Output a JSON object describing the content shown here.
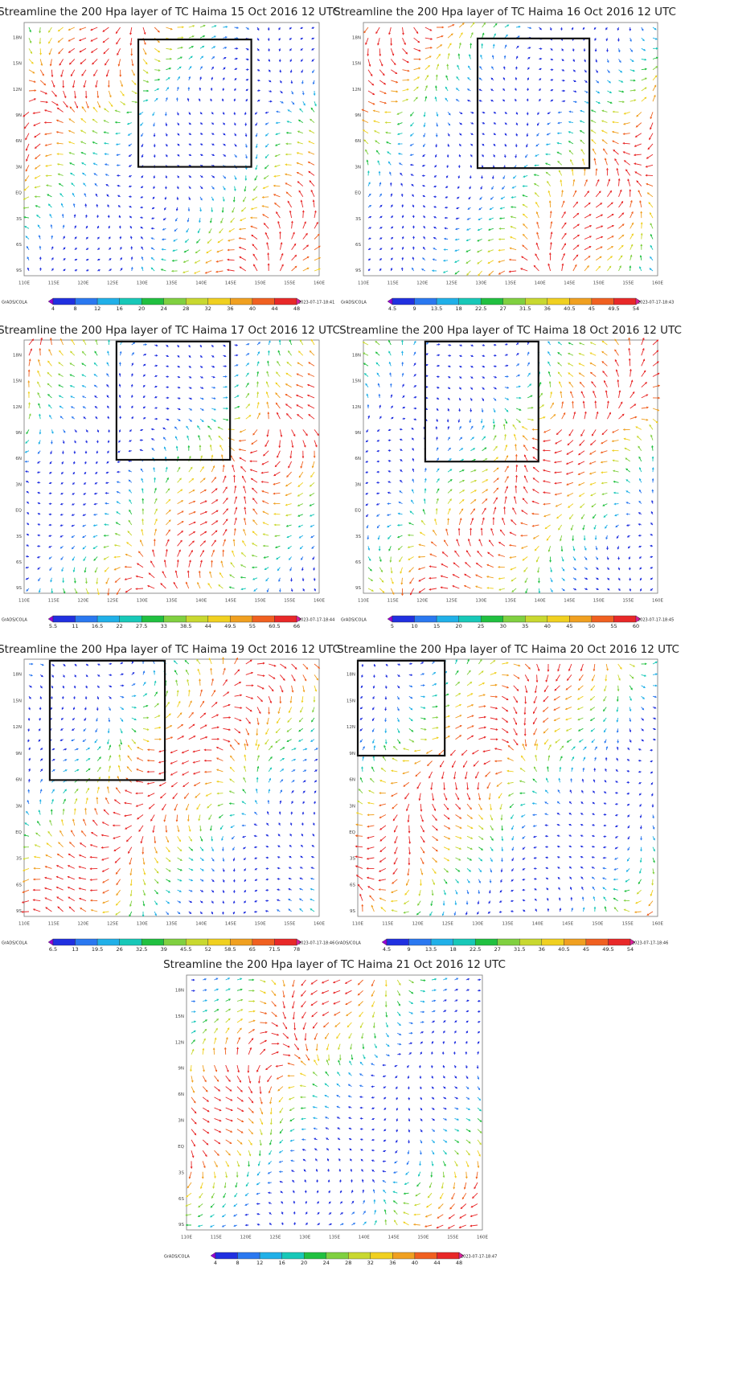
{
  "panels": [
    {
      "title": "Streamline the 200 Hpa layer of TC Haima 15 Oct 2016 12 UTC",
      "colorbar_labels": [
        "4",
        "8",
        "12",
        "16",
        "20",
        "24",
        "28",
        "32",
        "36",
        "40",
        "44",
        "48"
      ],
      "credit": "GrADS/COLA",
      "timestamp": "2023-07-17-18:41"
    },
    {
      "title": "Streamline the 200 Hpa layer of TC Haima 16 Oct 2016 12 UTC",
      "colorbar_labels": [
        "4.5",
        "9",
        "13.5",
        "18",
        "22.5",
        "27",
        "31.5",
        "36",
        "40.5",
        "45",
        "49.5",
        "54"
      ],
      "credit": "GrADS/COLA",
      "timestamp": "2023-07-17-18:43"
    },
    {
      "title": "Streamline the 200 Hpa layer of TC Haima 17 Oct 2016 12 UTC",
      "colorbar_labels": [
        "5.5",
        "11",
        "16.5",
        "22",
        "27.5",
        "33",
        "38.5",
        "44",
        "49.5",
        "55",
        "60.5",
        "66"
      ],
      "credit": "GrADS/COLA",
      "timestamp": "2023-07-17-18:44"
    },
    {
      "title": "Streamline the 200 Hpa layer of TC Haima 18 Oct 2016 12 UTC",
      "colorbar_labels": [
        "5",
        "10",
        "15",
        "20",
        "25",
        "30",
        "35",
        "40",
        "45",
        "50",
        "55",
        "60"
      ],
      "credit": "GrADS/COLA",
      "timestamp": "2023-07-17-18:45"
    },
    {
      "title": "Streamline the 200 Hpa layer of TC Haima 19 Oct 2016 12 UTC",
      "colorbar_labels": [
        "6.5",
        "13",
        "19.5",
        "26",
        "32.5",
        "39",
        "45.5",
        "52",
        "58.5",
        "65",
        "71.5",
        "78"
      ],
      "credit": "GrADS/COLA",
      "timestamp": "2023-07-17-18:46"
    },
    {
      "title": "Streamline the 200 Hpa layer of TC Haima 20 Oct 2016 12 UTC",
      "colorbar_labels": [
        "4.5",
        "9",
        "13.5",
        "18",
        "22.5",
        "27",
        "31.5",
        "36",
        "40.5",
        "45",
        "49.5",
        "54"
      ],
      "credit": "GrADS/COLA",
      "timestamp": "2023-07-17-18:46"
    },
    {
      "title": "Streamline the 200 Hpa layer of TC Haima 21 Oct 2016 12 UTC",
      "colorbar_labels": [
        "4",
        "8",
        "12",
        "16",
        "20",
        "24",
        "28",
        "32",
        "36",
        "40",
        "44",
        "48"
      ],
      "credit": "GrADS/COLA",
      "timestamp": "2023-07-17-18:47"
    }
  ],
  "lon_labels": [
    "110E",
    "115E",
    "120E",
    "125E",
    "130E",
    "135E",
    "140E",
    "145E",
    "150E",
    "155E",
    "160E"
  ],
  "lat_labels": [
    "18N",
    "15N",
    "12N",
    "9N",
    "6N",
    "3N",
    "EQ",
    "3S",
    "6S",
    "9S"
  ]
}
